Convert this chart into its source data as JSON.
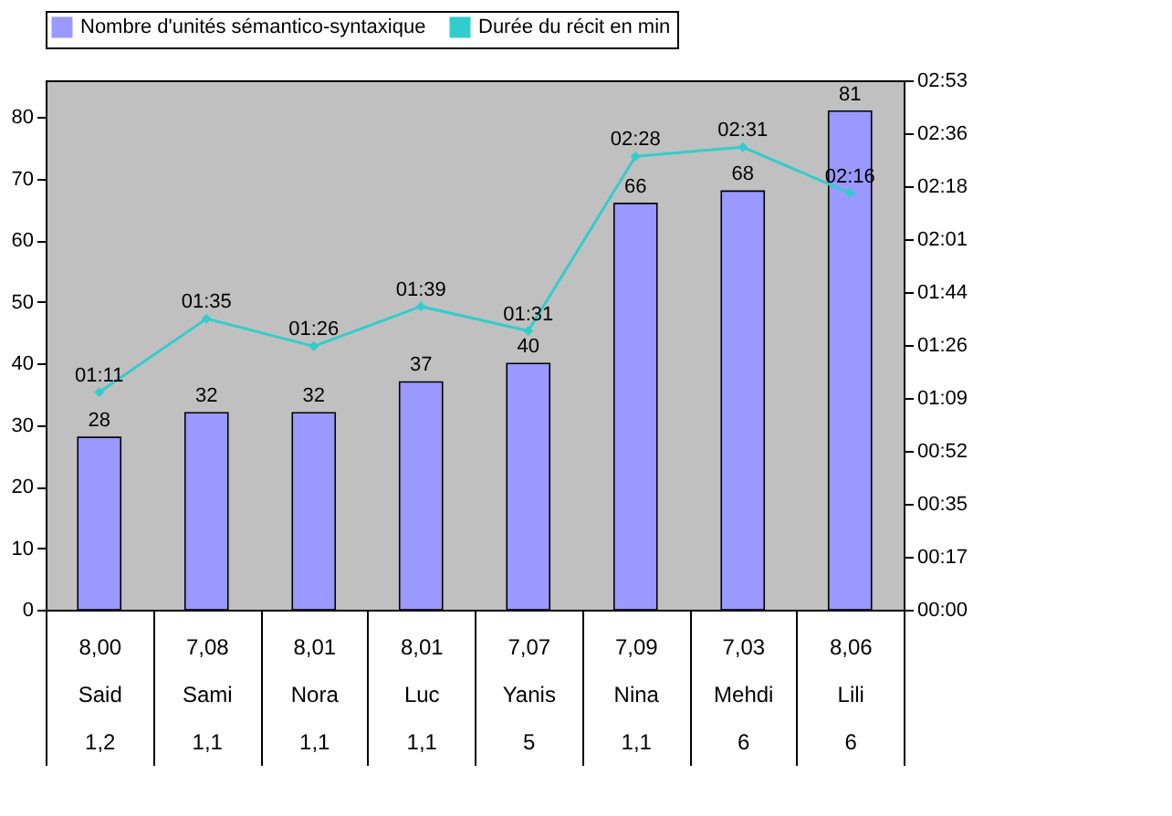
{
  "chart_data": {
    "type": "bar",
    "categories": [
      "8,00\nSaid\n1,2",
      "7,08\nSami\n1,1",
      "8,01\nNora\n1,1",
      "8,01\nLuc\n1,1",
      "7,07\nYanis\n5",
      "7,09\nNina\n1,1",
      "7,03\nMehdi\n6",
      "8,06\nLili\n6"
    ],
    "series": [
      {
        "name": "Nombre d'unités sémantico-syntaxique",
        "color": "#9999ff",
        "values": [
          28,
          32,
          32,
          37,
          40,
          66,
          68,
          81
        ],
        "data_labels": true
      },
      {
        "name": "Durée du récit en min",
        "type": "line",
        "axis": "y2",
        "color": "#33cccc",
        "marker": "diamond",
        "values": [
          71,
          95,
          86,
          99,
          91,
          148,
          151,
          136
        ],
        "value_labels": [
          "01:11",
          "01:35",
          "01:26",
          "01:39",
          "01:31",
          "02:28",
          "02:31",
          "02:16"
        ]
      }
    ],
    "ylim": [
      0,
      86
    ],
    "yticks": [
      0,
      10,
      20,
      30,
      40,
      50,
      60,
      70,
      80
    ],
    "y2lim": [
      0,
      172.8
    ],
    "y2ticks": [
      {
        "value": 0,
        "label": "00:00"
      },
      {
        "value": 17.28,
        "label": "00:17"
      },
      {
        "value": 34.56,
        "label": "00:35"
      },
      {
        "value": 51.84,
        "label": "00:52"
      },
      {
        "value": 69.12,
        "label": "01:09"
      },
      {
        "value": 86.4,
        "label": "01:26"
      },
      {
        "value": 103.68,
        "label": "01:44"
      },
      {
        "value": 120.96,
        "label": "02:01"
      },
      {
        "value": 138.24,
        "label": "02:18"
      },
      {
        "value": 155.52,
        "label": "02:36"
      },
      {
        "value": 172.8,
        "label": "02:53"
      }
    ],
    "grid": false,
    "legend": "top"
  }
}
